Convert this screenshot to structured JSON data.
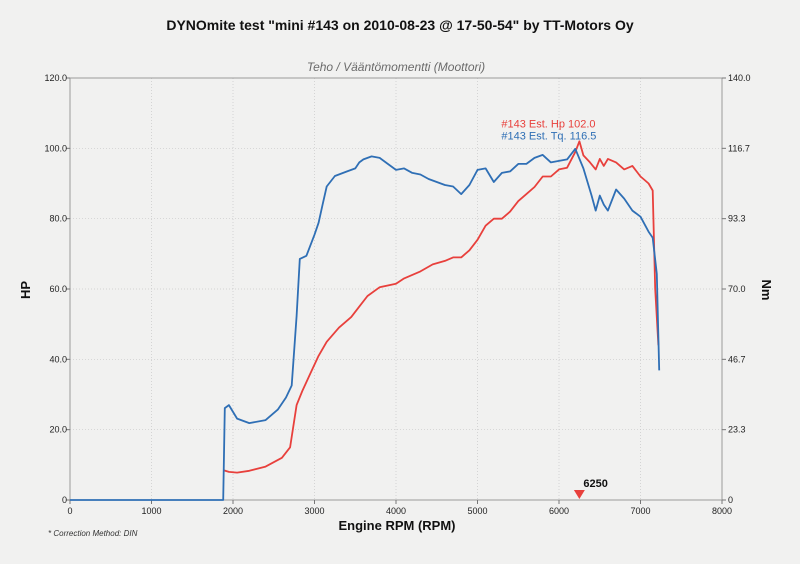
{
  "chart_data": {
    "type": "line",
    "title": "DYNOmite test \"mini #143 on 2010-08-23 @ 17-50-54\" by TT-Motors Oy",
    "subtitle": "Teho / Vääntömomentti (Moottori)",
    "xlabel": "Engine RPM (RPM)",
    "ylabel": "HP",
    "y2label": "Nm",
    "xlim": [
      0,
      8000
    ],
    "ylim": [
      0,
      120
    ],
    "y2lim": [
      0,
      140
    ],
    "xticks": [
      "0",
      "1000",
      "2000",
      "3000",
      "4000",
      "5000",
      "6000",
      "7000",
      "8000"
    ],
    "yticks": [
      "0",
      "20.0",
      "40.0",
      "60.0",
      "80.0",
      "100.0",
      "120.0"
    ],
    "y2ticks": [
      "0",
      "23.3",
      "46.7",
      "70.0",
      "93.3",
      "116.7",
      "140.0"
    ],
    "grid": true,
    "footnote": "* Correction Method: DIN",
    "marker": {
      "label": "6250",
      "x": 6250
    },
    "series": [
      {
        "name": "#143 Est. Hp 102.0",
        "color": "#e8403c",
        "axis": "left",
        "x": [
          1880,
          1950,
          2050,
          2200,
          2400,
          2600,
          2700,
          2780,
          2850,
          2950,
          3050,
          3150,
          3300,
          3450,
          3550,
          3650,
          3800,
          4000,
          4100,
          4300,
          4450,
          4600,
          4700,
          4800,
          4900,
          5000,
          5100,
          5200,
          5300,
          5400,
          5500,
          5600,
          5700,
          5800,
          5900,
          6000,
          6100,
          6200,
          6250,
          6300,
          6380,
          6450,
          6500,
          6550,
          6600,
          6700,
          6800,
          6900,
          7000,
          7050,
          7100,
          7150,
          7180,
          7220
        ],
        "values": [
          8.5,
          8.0,
          7.8,
          8.3,
          9.5,
          12.0,
          15.0,
          27.0,
          31.0,
          36.0,
          41.0,
          45.0,
          49.0,
          52.0,
          55.0,
          58.0,
          60.5,
          61.5,
          63.0,
          65.0,
          67.0,
          68.0,
          69.0,
          69.0,
          71.0,
          74.0,
          78.0,
          80.0,
          80.0,
          82.0,
          85.0,
          87.0,
          89.0,
          92.0,
          92.0,
          94.0,
          94.5,
          99.0,
          102.0,
          98.0,
          96.0,
          94.0,
          97.0,
          95.0,
          97.0,
          96.0,
          94.0,
          95.0,
          92.0,
          91.0,
          90.0,
          88.0,
          60.0,
          44.0
        ]
      },
      {
        "name": "#143 Est. Tq. 116.5",
        "color": "#2f6fb5",
        "axis": "right",
        "x": [
          0,
          1500,
          1880,
          1900,
          1950,
          2050,
          2200,
          2400,
          2550,
          2650,
          2720,
          2780,
          2820,
          2900,
          3000,
          3050,
          3100,
          3150,
          3250,
          3400,
          3500,
          3550,
          3600,
          3700,
          3800,
          3900,
          4000,
          4100,
          4200,
          4300,
          4400,
          4600,
          4700,
          4800,
          4900,
          5000,
          5100,
          5200,
          5300,
          5400,
          5500,
          5600,
          5700,
          5800,
          5900,
          6000,
          6100,
          6200,
          6300,
          6400,
          6450,
          6500,
          6550,
          6600,
          6700,
          6800,
          6900,
          7000,
          7100,
          7150,
          7200,
          7230
        ],
        "values": [
          0,
          0,
          0,
          30.5,
          31.5,
          27.0,
          25.5,
          26.5,
          30.0,
          34.0,
          38.0,
          61.0,
          80.0,
          81.0,
          88.0,
          92.0,
          98.0,
          104.0,
          107.5,
          109.0,
          110.0,
          112.0,
          113.0,
          114.0,
          113.5,
          111.5,
          109.5,
          110.0,
          108.5,
          108.0,
          106.5,
          104.5,
          104.0,
          101.5,
          104.5,
          109.5,
          110.0,
          105.5,
          108.5,
          109.0,
          111.5,
          111.5,
          113.5,
          114.5,
          112.0,
          112.5,
          113.0,
          116.5,
          110.0,
          101.0,
          96.0,
          101.0,
          98.0,
          96.0,
          103.0,
          100.0,
          96.0,
          94.0,
          89.0,
          87.0,
          75.0,
          43.0
        ]
      }
    ]
  }
}
